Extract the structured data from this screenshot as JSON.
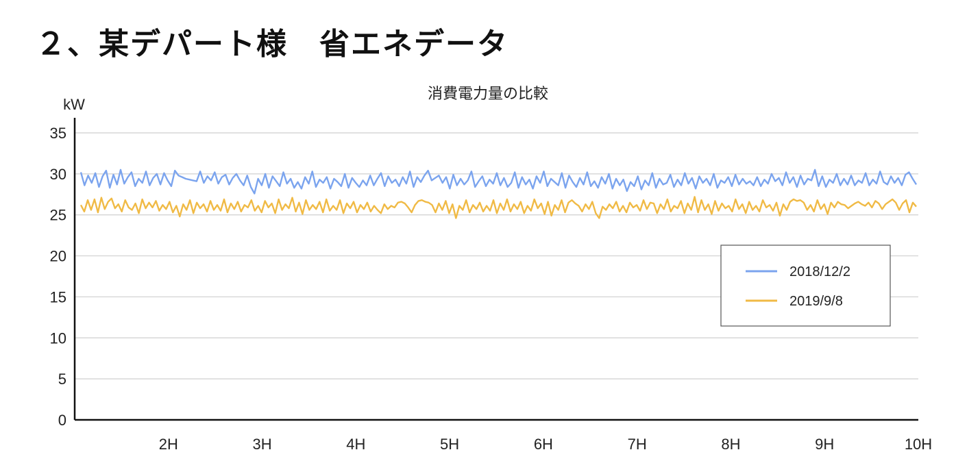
{
  "page": {
    "heading": "２、某デパート様　省エネデータ"
  },
  "chart_data": {
    "type": "line",
    "title": "消費電力量の比較",
    "ylabel": "kW",
    "xlabel": "",
    "ylim": [
      0,
      35
    ],
    "y_ticks": [
      0,
      5,
      10,
      15,
      20,
      25,
      30,
      35
    ],
    "x_range": [
      1,
      10
    ],
    "x_ticks": [
      {
        "value": 2,
        "label": "2H"
      },
      {
        "value": 3,
        "label": "3H"
      },
      {
        "value": 4,
        "label": "4H"
      },
      {
        "value": 5,
        "label": "5H"
      },
      {
        "value": 6,
        "label": "6H"
      },
      {
        "value": 7,
        "label": "7H"
      },
      {
        "value": 8,
        "label": "8H"
      },
      {
        "value": 9,
        "label": "9H"
      },
      {
        "value": 10,
        "label": "10H"
      }
    ],
    "grid": true,
    "legend_position": "right",
    "series": [
      {
        "name": "2018/12/2",
        "color": "#7ba4ee",
        "values": [
          30.2,
          28.6,
          29.8,
          28.9,
          30.1,
          28.4,
          29.7,
          30.4,
          28.3,
          29.9,
          28.7,
          30.5,
          28.8,
          29.6,
          30.2,
          28.5,
          29.4,
          28.9,
          30.3,
          28.6,
          29.5,
          30.0,
          28.7,
          30.1,
          29.2,
          28.5,
          30.4,
          29.8,
          29.6,
          29.4,
          29.3,
          29.2,
          29.1,
          30.3,
          28.9,
          29.7,
          29.2,
          30.2,
          28.8,
          29.6,
          29.9,
          28.7,
          29.5,
          30.0,
          29.2,
          28.6,
          29.8,
          28.4,
          27.6,
          29.4,
          28.6,
          30.0,
          28.3,
          29.7,
          29.1,
          28.5,
          30.2,
          28.8,
          29.4,
          28.3,
          29.0,
          28.2,
          29.6,
          28.8,
          30.3,
          28.4,
          29.3,
          28.9,
          29.6,
          28.2,
          29.4,
          29.0,
          28.5,
          30.0,
          28.3,
          29.5,
          28.9,
          28.4,
          29.2,
          28.6,
          29.8,
          28.6,
          29.4,
          30.1,
          28.5,
          29.7,
          28.9,
          29.3,
          28.5,
          29.6,
          28.8,
          30.3,
          28.4,
          29.6,
          29.0,
          29.8,
          30.4,
          29.2,
          29.5,
          29.8,
          28.9,
          29.6,
          28.2,
          29.9,
          28.6,
          29.4,
          28.7,
          29.2,
          30.3,
          28.4,
          29.1,
          29.7,
          28.5,
          29.3,
          28.8,
          30.1,
          28.6,
          29.5,
          28.4,
          28.9,
          30.2,
          28.3,
          29.6,
          28.7,
          29.3,
          28.2,
          29.7,
          28.9,
          30.3,
          28.5,
          29.4,
          29.0,
          28.6,
          30.1,
          28.3,
          29.8,
          29.0,
          28.4,
          29.5,
          28.7,
          30.2,
          28.5,
          29.1,
          28.3,
          29.6,
          28.8,
          30.0,
          28.2,
          29.4,
          28.6,
          29.3,
          27.9,
          29.0,
          28.5,
          29.7,
          28.1,
          29.2,
          28.6,
          30.1,
          28.3,
          29.4,
          28.7,
          28.9,
          29.9,
          28.4,
          29.3,
          28.6,
          30.1,
          28.8,
          29.5,
          28.2,
          29.7,
          28.9,
          29.4,
          28.6,
          30.0,
          28.3,
          29.2,
          28.9,
          29.6,
          28.5,
          29.9,
          28.7,
          29.4,
          28.8,
          29.1,
          28.6,
          29.6,
          28.5,
          29.3,
          28.8,
          30.0,
          29.1,
          29.5,
          28.6,
          30.2,
          28.9,
          29.6,
          28.4,
          29.8,
          28.7,
          29.4,
          29.2,
          30.5,
          28.5,
          29.7,
          28.4,
          29.3,
          28.9,
          30.0,
          28.6,
          29.4,
          28.7,
          29.8,
          28.6,
          29.2,
          28.9,
          30.1,
          28.6,
          29.3,
          28.8,
          30.3,
          29.0,
          28.7,
          29.7,
          28.9,
          29.5,
          28.6,
          29.9,
          30.2,
          29.4,
          28.7
        ]
      },
      {
        "name": "2019/9/8",
        "color": "#f0ba45",
        "values": [
          26.2,
          25.4,
          26.8,
          25.6,
          26.9,
          25.3,
          27.1,
          25.7,
          26.6,
          27.0,
          25.8,
          26.3,
          25.4,
          26.8,
          25.9,
          25.6,
          26.4,
          25.2,
          26.9,
          25.8,
          26.5,
          25.9,
          26.7,
          25.5,
          26.2,
          25.7,
          26.6,
          25.3,
          26.1,
          24.8,
          26.3,
          25.6,
          26.8,
          25.2,
          26.5,
          25.8,
          26.3,
          25.4,
          26.7,
          25.6,
          26.2,
          25.5,
          26.9,
          25.3,
          26.4,
          25.7,
          26.6,
          25.4,
          26.2,
          25.9,
          26.8,
          25.5,
          26.1,
          25.3,
          26.7,
          25.9,
          26.4,
          25.2,
          26.9,
          25.6,
          26.3,
          25.8,
          27.1,
          25.4,
          26.5,
          25.1,
          26.8,
          25.6,
          26.2,
          25.7,
          26.6,
          25.3,
          26.9,
          25.5,
          26.1,
          25.6,
          26.8,
          25.2,
          26.4,
          25.8,
          26.6,
          25.3,
          26.2,
          25.7,
          26.5,
          25.4,
          26.1,
          25.6,
          25.2,
          26.3,
          25.7,
          26.1,
          25.9,
          26.5,
          26.6,
          26.4,
          25.9,
          25.3,
          26.2,
          26.7,
          26.8,
          26.6,
          26.5,
          26.2,
          25.3,
          26.4,
          25.6,
          26.7,
          25.2,
          26.3,
          24.6,
          26.1,
          25.6,
          26.8,
          25.3,
          26.2,
          25.7,
          26.5,
          25.4,
          26.1,
          25.5,
          26.8,
          25.2,
          26.4,
          25.6,
          26.9,
          25.4,
          26.3,
          25.7,
          26.6,
          25.2,
          26.1,
          25.5,
          26.9,
          25.8,
          26.4,
          25.1,
          26.6,
          24.9,
          26.2,
          25.6,
          26.8,
          25.3,
          26.5,
          26.8,
          26.4,
          26.1,
          25.4,
          26.3,
          25.7,
          26.6,
          25.2,
          24.6,
          26.0,
          25.6,
          26.3,
          25.8,
          26.6,
          25.4,
          26.1,
          25.3,
          26.5,
          25.9,
          26.2,
          25.5,
          26.8,
          25.7,
          26.5,
          26.4,
          25.2,
          26.3,
          25.7,
          26.9,
          25.4,
          26.1,
          25.8,
          26.7,
          25.2,
          26.4,
          25.6,
          27.2,
          25.3,
          26.8,
          25.6,
          26.3,
          25.1,
          26.7,
          25.5,
          26.4,
          25.8,
          26.1,
          25.4,
          26.9,
          25.7,
          26.3,
          25.2,
          26.6,
          25.6,
          26.1,
          25.4,
          26.8,
          25.9,
          26.2,
          25.5,
          26.5,
          24.9,
          26.3,
          25.6,
          26.6,
          26.9,
          26.7,
          26.8,
          26.5,
          25.6,
          26.2,
          25.4,
          26.8,
          25.7,
          26.3,
          25.1,
          26.5,
          25.9,
          26.6,
          26.3,
          26.2,
          25.8,
          26.1,
          26.4,
          26.6,
          26.3,
          26.1,
          26.5,
          25.9,
          26.7,
          26.4,
          25.7,
          26.3,
          26.6,
          26.9,
          26.5,
          25.6,
          26.4,
          26.8,
          25.3,
          26.5,
          26.0
        ]
      }
    ]
  }
}
